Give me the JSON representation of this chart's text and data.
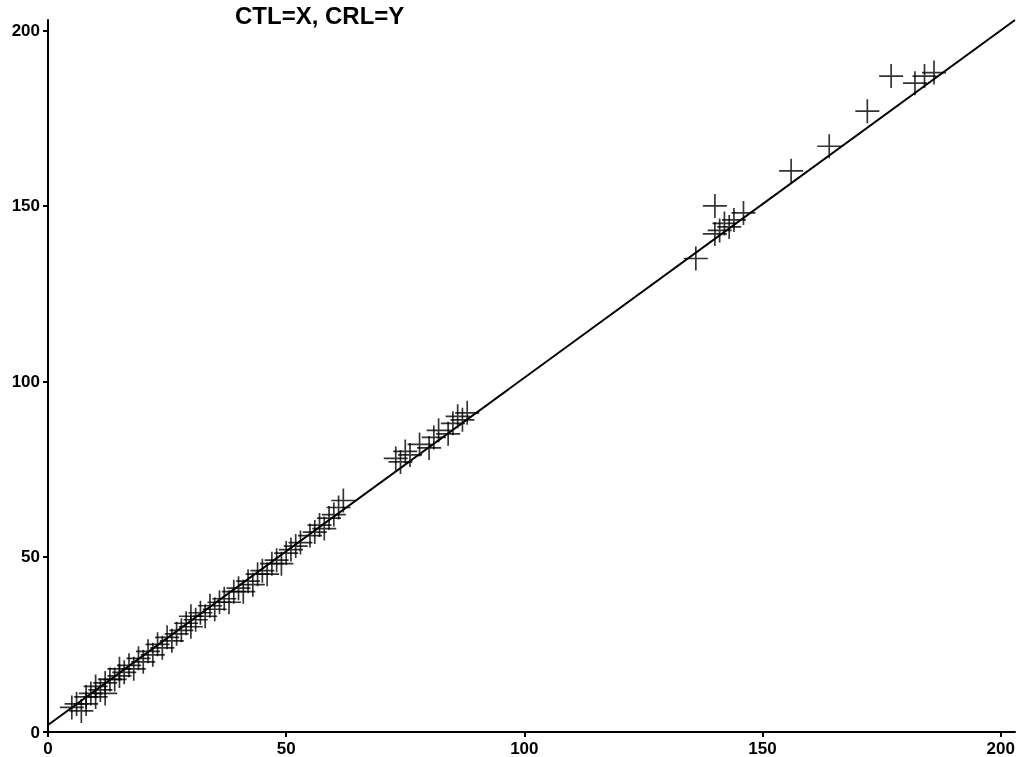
{
  "chart_data": {
    "type": "scatter",
    "title": "CTL=X, CRL=Y",
    "xlim": [
      0,
      203
    ],
    "ylim": [
      0,
      203
    ],
    "xticks": [
      0,
      50,
      100,
      150,
      200
    ],
    "yticks": [
      0,
      50,
      100,
      150,
      200
    ],
    "grid": false,
    "series": [
      {
        "color": "#000000",
        "marker": "cross",
        "x": [
          5,
          6,
          7,
          8,
          8,
          9,
          10,
          10,
          11,
          12,
          12,
          13,
          14,
          15,
          15,
          16,
          17,
          18,
          19,
          20,
          21,
          22,
          23,
          24,
          25,
          26,
          27,
          28,
          29,
          30,
          30,
          31,
          32,
          33,
          34,
          35,
          36,
          37,
          38,
          39,
          40,
          41,
          42,
          43,
          44,
          45,
          46,
          47,
          48,
          49,
          50,
          51,
          52,
          53,
          55,
          56,
          57,
          58,
          59,
          60,
          61,
          62,
          73,
          74,
          75,
          76,
          78,
          80,
          81,
          82,
          84,
          85,
          86,
          87,
          88,
          136,
          140,
          140,
          141,
          142,
          143,
          144,
          146,
          156,
          164,
          172,
          177,
          182,
          184,
          186
        ],
        "values": [
          7,
          8,
          6,
          10,
          8,
          11,
          10,
          13,
          12,
          14,
          11,
          15,
          15,
          16,
          18,
          17,
          19,
          18,
          21,
          20,
          23,
          22,
          25,
          24,
          27,
          26,
          28,
          29,
          31,
          30,
          33,
          32,
          34,
          33,
          36,
          35,
          37,
          38,
          37,
          40,
          41,
          40,
          43,
          42,
          45,
          46,
          45,
          48,
          49,
          48,
          51,
          52,
          53,
          54,
          56,
          57,
          59,
          58,
          61,
          62,
          64,
          66,
          78,
          77,
          80,
          79,
          82,
          81,
          84,
          86,
          85,
          88,
          90,
          89,
          91,
          135,
          150,
          142,
          143,
          145,
          144,
          146,
          148,
          160,
          167,
          177,
          187,
          185,
          187,
          188
        ]
      },
      {
        "type": "line",
        "color": "#000000",
        "x": [
          0,
          203
        ],
        "values": [
          2,
          203
        ]
      }
    ]
  }
}
